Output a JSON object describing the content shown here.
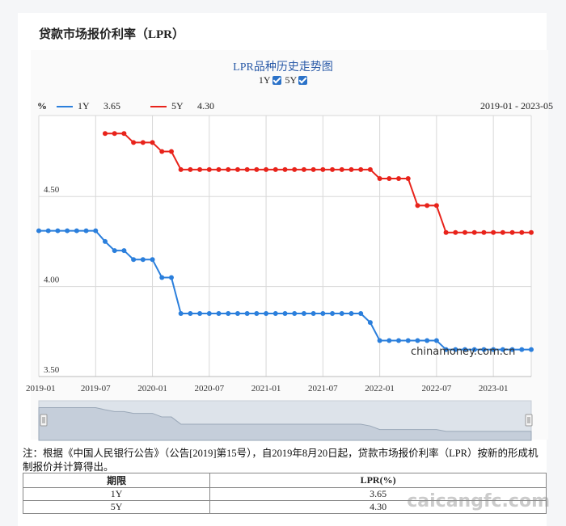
{
  "page": {
    "title": "贷款市场报价利率（LPR）"
  },
  "chart_data": {
    "type": "line",
    "title": "LPR品种历史走势图",
    "unit": "%",
    "date_range": "2019-01 - 2023-05",
    "toggles": [
      {
        "label": "1Y",
        "checked": true
      },
      {
        "label": "5Y",
        "checked": true
      }
    ],
    "legend": [
      {
        "name": "1Y",
        "latest": "3.65",
        "color": "#2b7fdc"
      },
      {
        "name": "5Y",
        "latest": "4.30",
        "color": "#e8231b"
      }
    ],
    "ylim": [
      3.5,
      4.95
    ],
    "yticks": [
      "3.50",
      "4.00",
      "4.50"
    ],
    "xticks": [
      "2019-01",
      "2019-07",
      "2020-01",
      "2020-07",
      "2021-01",
      "2021-07",
      "2022-01",
      "2022-07",
      "2023-01"
    ],
    "grid": true,
    "series": [
      {
        "name": "1Y",
        "color": "#2b7fdc",
        "x": [
          "2019-01",
          "2019-02",
          "2019-03",
          "2019-04",
          "2019-05",
          "2019-06",
          "2019-07",
          "2019-08",
          "2019-09",
          "2019-10",
          "2019-11",
          "2019-12",
          "2020-01",
          "2020-02",
          "2020-03",
          "2020-04",
          "2020-05",
          "2020-06",
          "2020-07",
          "2020-08",
          "2020-09",
          "2020-10",
          "2020-11",
          "2020-12",
          "2021-01",
          "2021-02",
          "2021-03",
          "2021-04",
          "2021-05",
          "2021-06",
          "2021-07",
          "2021-08",
          "2021-09",
          "2021-10",
          "2021-11",
          "2021-12",
          "2022-01",
          "2022-02",
          "2022-03",
          "2022-04",
          "2022-05",
          "2022-06",
          "2022-07",
          "2022-08",
          "2022-09",
          "2022-10",
          "2022-11",
          "2022-12",
          "2023-01",
          "2023-02",
          "2023-03",
          "2023-04",
          "2023-05"
        ],
        "values": [
          4.31,
          4.31,
          4.31,
          4.31,
          4.31,
          4.31,
          4.31,
          4.25,
          4.2,
          4.2,
          4.15,
          4.15,
          4.15,
          4.05,
          4.05,
          3.85,
          3.85,
          3.85,
          3.85,
          3.85,
          3.85,
          3.85,
          3.85,
          3.85,
          3.85,
          3.85,
          3.85,
          3.85,
          3.85,
          3.85,
          3.85,
          3.85,
          3.85,
          3.85,
          3.85,
          3.8,
          3.7,
          3.7,
          3.7,
          3.7,
          3.7,
          3.7,
          3.7,
          3.65,
          3.65,
          3.65,
          3.65,
          3.65,
          3.65,
          3.65,
          3.65,
          3.65,
          3.65
        ]
      },
      {
        "name": "5Y",
        "color": "#e8231b",
        "x": [
          "2019-08",
          "2019-09",
          "2019-10",
          "2019-11",
          "2019-12",
          "2020-01",
          "2020-02",
          "2020-03",
          "2020-04",
          "2020-05",
          "2020-06",
          "2020-07",
          "2020-08",
          "2020-09",
          "2020-10",
          "2020-11",
          "2020-12",
          "2021-01",
          "2021-02",
          "2021-03",
          "2021-04",
          "2021-05",
          "2021-06",
          "2021-07",
          "2021-08",
          "2021-09",
          "2021-10",
          "2021-11",
          "2021-12",
          "2022-01",
          "2022-02",
          "2022-03",
          "2022-04",
          "2022-05",
          "2022-06",
          "2022-07",
          "2022-08",
          "2022-09",
          "2022-10",
          "2022-11",
          "2022-12",
          "2023-01",
          "2023-02",
          "2023-03",
          "2023-04",
          "2023-05"
        ],
        "values": [
          4.85,
          4.85,
          4.85,
          4.8,
          4.8,
          4.8,
          4.75,
          4.75,
          4.65,
          4.65,
          4.65,
          4.65,
          4.65,
          4.65,
          4.65,
          4.65,
          4.65,
          4.65,
          4.65,
          4.65,
          4.65,
          4.65,
          4.65,
          4.65,
          4.65,
          4.65,
          4.65,
          4.65,
          4.65,
          4.6,
          4.6,
          4.6,
          4.6,
          4.45,
          4.45,
          4.45,
          4.3,
          4.3,
          4.3,
          4.3,
          4.3,
          4.3,
          4.3,
          4.3,
          4.3,
          4.3
        ]
      }
    ],
    "navigator": {
      "label": "chinamoney.com.cn"
    }
  },
  "note": "注：根据《中国人民银行公告》（公告[2019]第15号），自2019年8月20日起，贷款市场报价利率（LPR）按新的形成机制报价并计算得出。",
  "table": {
    "headers": [
      "期限",
      "LPR(%)"
    ],
    "rows": [
      [
        "1Y",
        "3.65"
      ],
      [
        "5Y",
        "4.30"
      ]
    ]
  },
  "watermark": "caicangfc.com"
}
